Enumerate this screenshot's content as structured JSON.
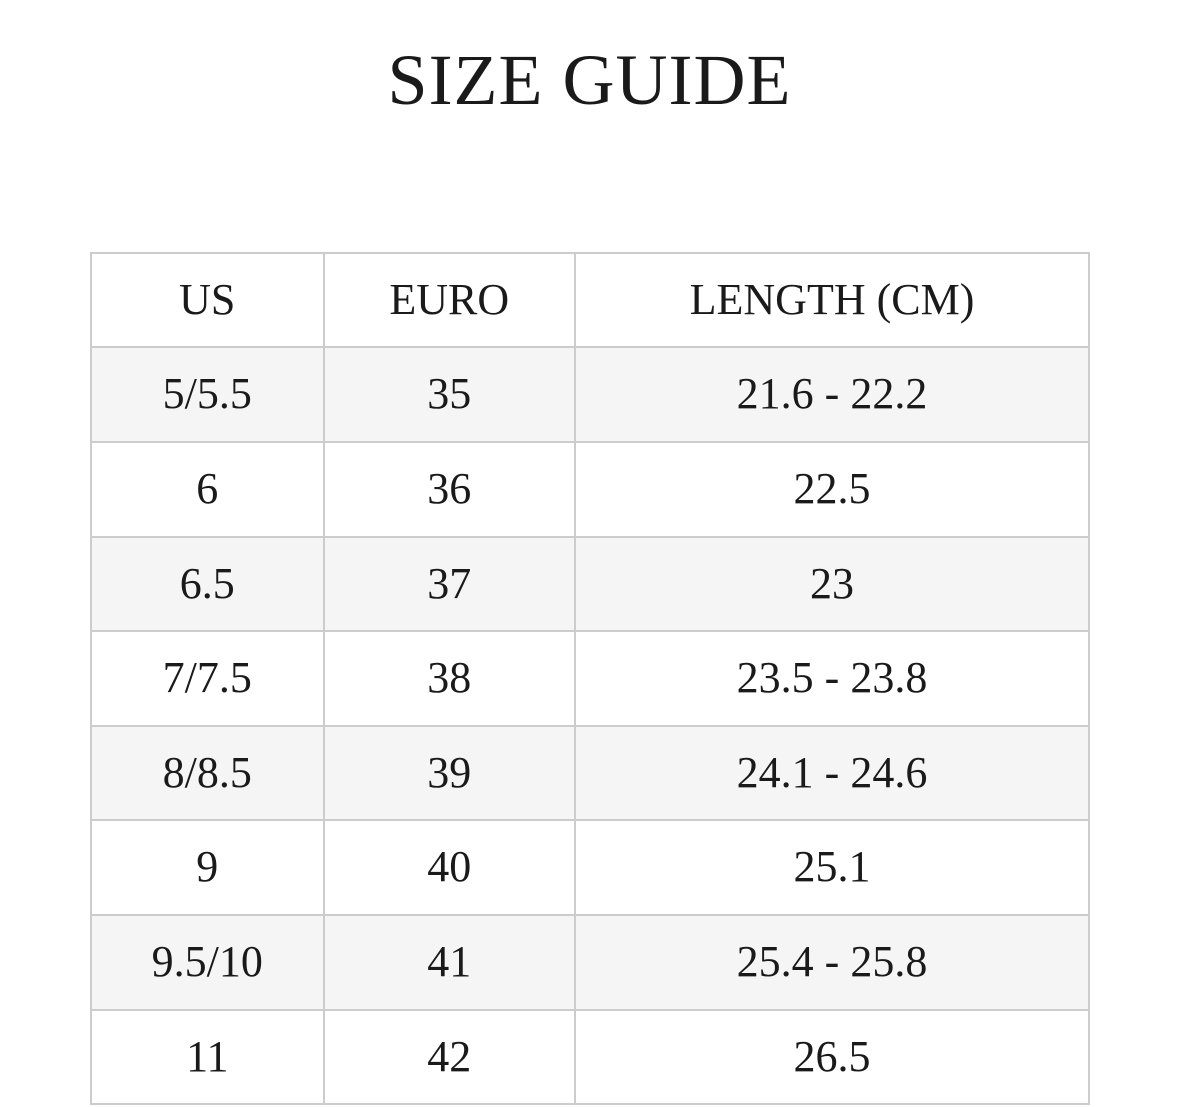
{
  "title": "SIZE GUIDE",
  "table": {
    "headers": [
      "US",
      "EURO",
      "LENGTH (CM)"
    ],
    "rows": [
      [
        "5/5.5",
        "35",
        "21.6 - 22.2"
      ],
      [
        "6",
        "36",
        "22.5"
      ],
      [
        "6.5",
        "37",
        "23"
      ],
      [
        "7/7.5",
        "38",
        "23.5 - 23.8"
      ],
      [
        "8/8.5",
        "39",
        "24.1 - 24.6"
      ],
      [
        "9",
        "40",
        "25.1"
      ],
      [
        "9.5/10",
        "41",
        "25.4 - 25.8"
      ],
      [
        "11",
        "42",
        "26.5"
      ]
    ]
  },
  "colors": {
    "background": "#ffffff",
    "text": "#1a1a1a",
    "border": "#cccccc",
    "row_alt_background": "#f5f5f5"
  }
}
